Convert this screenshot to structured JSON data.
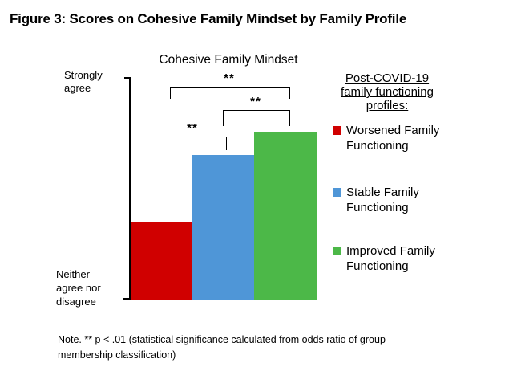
{
  "figure": {
    "title": "Figure 3: Scores on Cohesive Family Mindset by Family Profile",
    "note": "Note. ** p < .01 (statistical significance calculated from odds ratio of group membership classification)"
  },
  "chart_data": {
    "type": "bar",
    "title": "Cohesive Family Mindset",
    "categories": [
      "Worsened Family Functioning",
      "Stable Family Functioning",
      "Improved Family Functioning"
    ],
    "series": [
      {
        "name": "Worsened Family Functioning",
        "value": 0.35,
        "color": "#D00000"
      },
      {
        "name": "Stable Family Functioning",
        "value": 0.65,
        "color": "#4F96D7"
      },
      {
        "name": "Improved Family Functioning",
        "value": 0.75,
        "color": "#4CB848"
      }
    ],
    "value_scale": "fraction of y-axis height, estimated from figure",
    "ylim": [
      0,
      1
    ],
    "y_axis": {
      "top_label": "Strongly\nagree",
      "bottom_label": "Neither\nagree nor\ndisagree"
    },
    "annotations": [
      {
        "label": "**",
        "between": [
          "Worsened Family Functioning",
          "Stable Family Functioning"
        ]
      },
      {
        "label": "**",
        "between": [
          "Stable Family Functioning",
          "Improved Family Functioning"
        ]
      },
      {
        "label": "**",
        "between": [
          "Worsened Family Functioning",
          "Improved Family Functioning"
        ]
      }
    ],
    "grid": false,
    "legend_position": "right",
    "x_axis_labels": []
  },
  "legend": {
    "title": "Post-COVID-19\nfamily functioning\nprofiles:",
    "items": [
      {
        "label": "Worsened Family Functioning",
        "color": "#D00000"
      },
      {
        "label": "Stable Family Functioning",
        "color": "#4F96D7"
      },
      {
        "label": "Improved Family Functioning",
        "color": "#4CB848"
      }
    ]
  }
}
